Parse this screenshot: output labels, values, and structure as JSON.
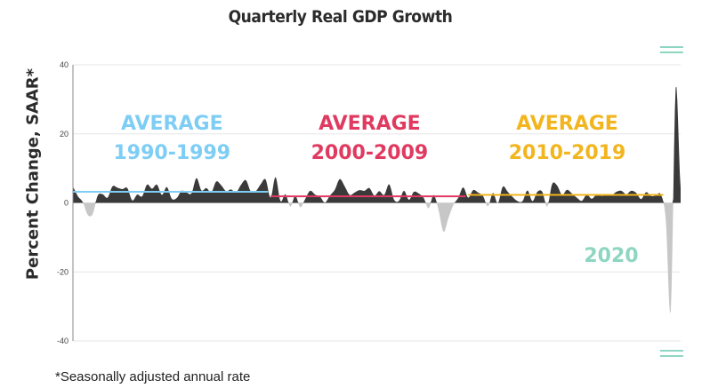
{
  "chart_data": {
    "type": "area",
    "title": "Quarterly Real GDP Growth",
    "ylabel": "Percent Change, SAAR*",
    "footnote": "*Seasonally adjusted annual rate",
    "ylim": [
      -40,
      40
    ],
    "yticks": [
      -40,
      -20,
      0,
      20,
      40
    ],
    "grid": true,
    "colors": {
      "positive": "#3a3a3a",
      "negative": "#c7c7c7",
      "axis": "#888888",
      "grid": "#e6e6e6"
    },
    "series": [
      {
        "name": "1990-1999",
        "values": [
          4.5,
          1.9,
          0.2,
          -3.5,
          -3.2,
          2.1,
          2.5,
          1.5,
          4.8,
          4.4,
          4.0,
          4.3,
          0.7,
          2.4,
          1.9,
          5.3,
          4.1,
          5.3,
          2.3,
          4.6,
          1.2,
          1.4,
          3.5,
          3.0,
          2.8,
          7.2,
          3.6,
          4.3,
          3.1,
          6.2,
          5.1,
          3.4,
          3.9,
          3.0,
          5.2,
          6.6,
          3.3,
          3.4,
          5.4,
          6.8
        ]
      },
      {
        "name": "2000-2009",
        "values": [
          1.5,
          7.5,
          0.5,
          2.5,
          -1.1,
          2.1,
          -1.3,
          1.1,
          3.5,
          2.4,
          1.8,
          0.1,
          2.1,
          3.8,
          6.9,
          4.8,
          2.3,
          3.0,
          3.7,
          3.5,
          4.3,
          2.1,
          3.4,
          2.3,
          5.4,
          0.9,
          0.6,
          3.5,
          0.9,
          3.2,
          2.7,
          1.4,
          -1.6,
          2.3,
          -2.1,
          -8.4,
          -4.4,
          -0.6,
          1.5,
          4.5
        ]
      },
      {
        "name": "2010-2019",
        "values": [
          1.5,
          3.7,
          3.0,
          2.0,
          -1.0,
          2.9,
          -0.1,
          4.7,
          3.2,
          1.7,
          0.5,
          0.5,
          3.6,
          0.5,
          3.2,
          3.2,
          -1.1,
          5.5,
          5.0,
          2.3,
          3.8,
          2.7,
          1.5,
          0.6,
          2.4,
          1.2,
          2.4,
          2.0,
          2.3,
          2.2,
          3.2,
          3.5,
          2.5,
          3.5,
          2.9,
          1.1,
          3.1,
          2.0,
          2.1,
          2.4
        ]
      },
      {
        "name": "2020",
        "values": [
          -5.0,
          -31.4,
          33.4,
          4.3
        ]
      }
    ],
    "averages": [
      {
        "label_top": "AVERAGE",
        "label_period": "1990-1999",
        "value": 3.2,
        "color": "#7dcdf5"
      },
      {
        "label_top": "AVERAGE",
        "label_period": "2000-2009",
        "value": 1.9,
        "color": "#e03a60"
      },
      {
        "label_top": "AVERAGE",
        "label_period": "2010-2019",
        "value": 2.3,
        "color": "#f2b51e"
      }
    ],
    "annotation_2020": {
      "label": "2020",
      "color": "#8fd6c2"
    },
    "axis_break_color": "#8fd6c2"
  }
}
